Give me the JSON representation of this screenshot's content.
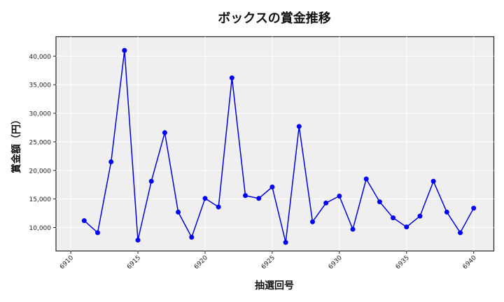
{
  "chart_data": {
    "type": "line",
    "title": "ボックスの賞金推移",
    "xlabel": "抽選回号",
    "ylabel": "賞金額（円）",
    "x": [
      6911,
      6912,
      6913,
      6914,
      6915,
      6916,
      6917,
      6918,
      6919,
      6920,
      6921,
      6922,
      6923,
      6924,
      6925,
      6926,
      6927,
      6928,
      6929,
      6930,
      6931,
      6932,
      6933,
      6934,
      6935,
      6936,
      6937,
      6938,
      6939,
      6940
    ],
    "series": [
      {
        "name": "ボックス",
        "color": "#0000ff",
        "marker": "circle",
        "values": [
          11200,
          9100,
          21500,
          41000,
          7800,
          18100,
          26600,
          12700,
          8300,
          15100,
          13600,
          36200,
          15600,
          15100,
          17100,
          7400,
          27700,
          11000,
          14300,
          15500,
          9700,
          18500,
          14500,
          11700,
          10100,
          12000,
          18100,
          12700,
          9100,
          13400
        ]
      }
    ],
    "xlim": [
      6908.9,
      6941.5
    ],
    "ylim": [
      5900,
      43400
    ],
    "xticks": [
      6910,
      6915,
      6920,
      6925,
      6930,
      6935,
      6940
    ],
    "xtick_labels": [
      "6910",
      "6915",
      "6920",
      "6925",
      "6930",
      "6935",
      "6940"
    ],
    "yticks": [
      10000,
      15000,
      20000,
      25000,
      30000,
      35000,
      40000
    ],
    "ytick_labels": [
      "10,000",
      "15,000",
      "20,000",
      "25,000",
      "30,000",
      "35,000",
      "40,000"
    ],
    "grid": true,
    "legend": null,
    "background": "#efefef"
  }
}
